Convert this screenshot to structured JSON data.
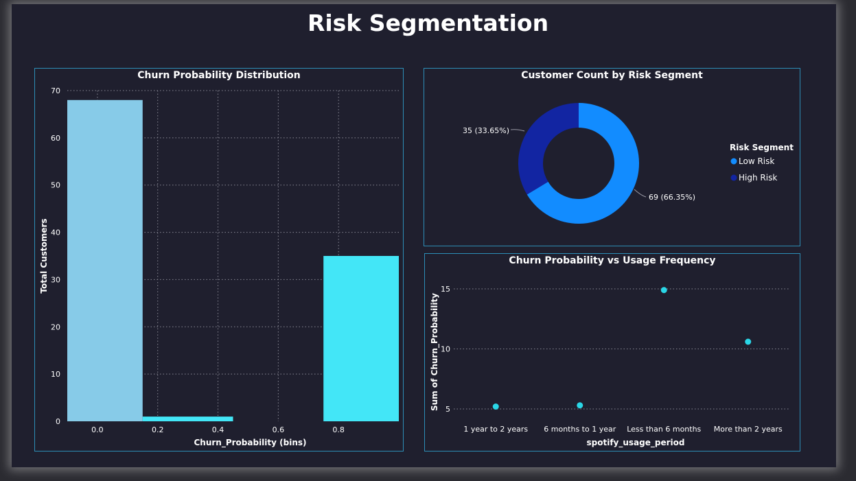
{
  "page": {
    "title": "Risk Segmentation"
  },
  "colors": {
    "background": "#1f1f2e",
    "border": "#2d8fb8",
    "light_blue": "#87cbe8",
    "cyan": "#43e6f7",
    "low_risk": "#128cff",
    "high_risk": "#1225a2",
    "scatter": "#2ad6e6"
  },
  "chart_data": [
    {
      "id": "histogram",
      "type": "bar",
      "title": "Churn Probability Distribution",
      "xlabel": "Churn_Probability (bins)",
      "ylabel": "Total Customers",
      "ylim": [
        0,
        70
      ],
      "yticks": [
        0,
        10,
        20,
        30,
        40,
        50,
        60,
        70
      ],
      "xlim": [
        -0.1,
        1.0
      ],
      "xticks": [
        0.0,
        0.2,
        0.4,
        0.6,
        0.8
      ],
      "xtick_labels": [
        "0.0",
        "0.2",
        "0.4",
        "0.6",
        "0.8"
      ],
      "bars": [
        {
          "x0": -0.1,
          "x1": 0.15,
          "value": 68,
          "color": "#87cbe8"
        },
        {
          "x0": 0.15,
          "x1": 0.45,
          "value": 1,
          "color": "#43e6f7"
        },
        {
          "x0": 0.75,
          "x1": 1.0,
          "value": 35,
          "color": "#43e6f7"
        }
      ],
      "grid": true
    },
    {
      "id": "donut",
      "type": "pie",
      "title": "Customer Count by Risk Segment",
      "legend_title": "Risk Segment",
      "legend_position": "right",
      "slices": [
        {
          "label": "Low Risk",
          "value": 69,
          "display": "69 (66.35%)",
          "color": "#128cff"
        },
        {
          "label": "High Risk",
          "value": 35,
          "display": "35 (33.65%)",
          "color": "#1225a2"
        }
      ]
    },
    {
      "id": "scatter",
      "type": "scatter",
      "title": "Churn Probability vs Usage Frequency",
      "xlabel": "spotify_usage_period",
      "ylabel": "Sum of Churn_Probability",
      "categories": [
        "1 year to 2 years",
        "6 months to 1 year",
        "Less than 6 months",
        "More than 2 years"
      ],
      "values": [
        5.2,
        5.3,
        14.9,
        10.6
      ],
      "ylim": [
        4.2,
        16.2
      ],
      "yticks": [
        5,
        10,
        15
      ],
      "grid": true
    }
  ]
}
